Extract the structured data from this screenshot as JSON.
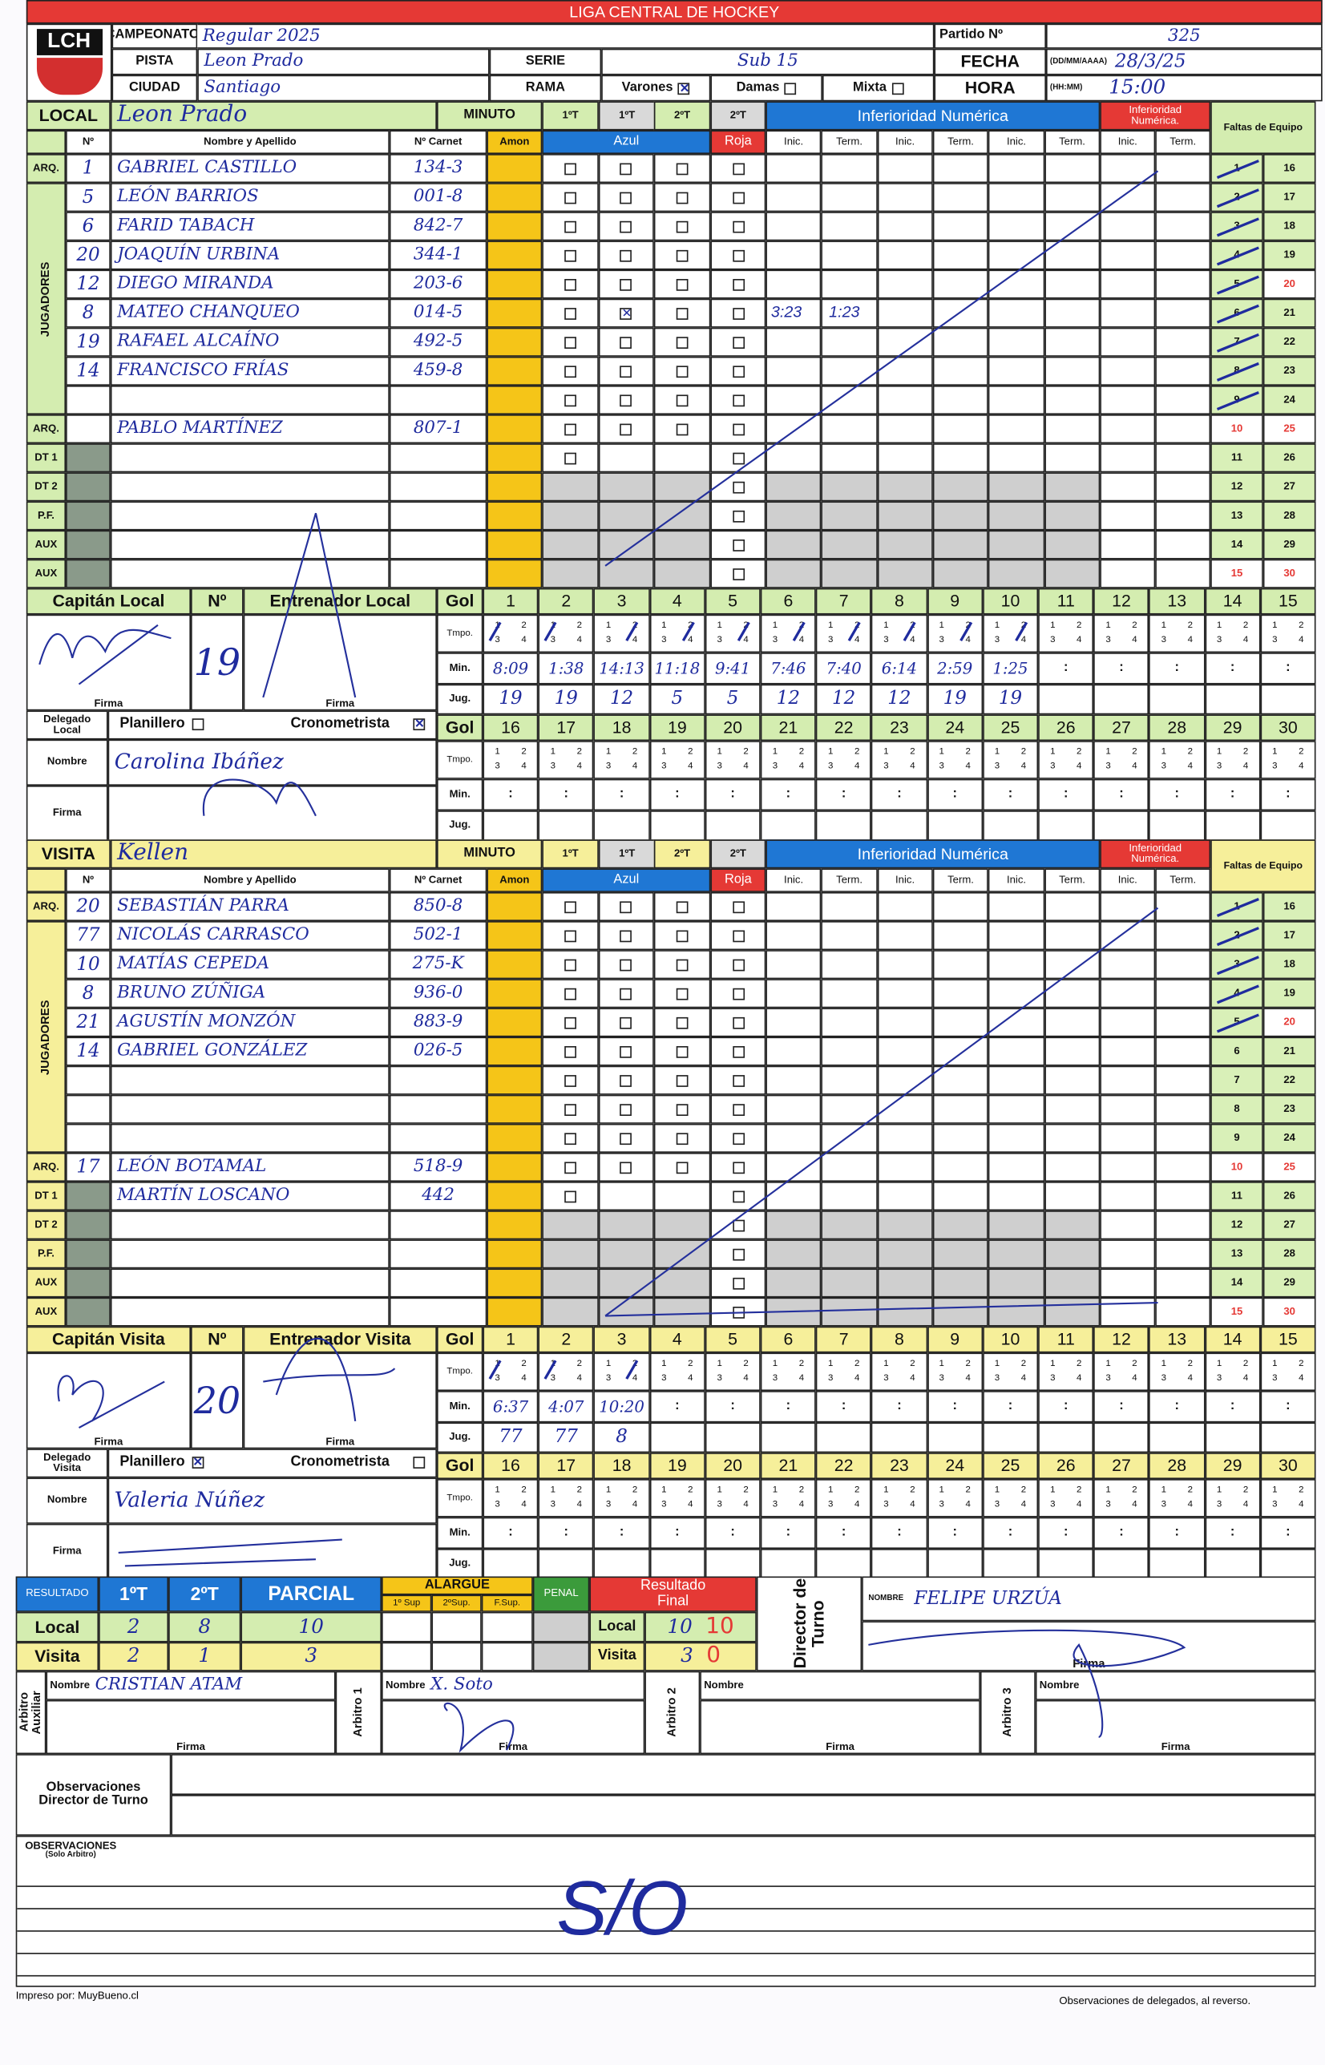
{
  "header": {
    "league_title": "LIGA CENTRAL DE HOCKEY",
    "logo_text": "LCH",
    "campeonato_label": "CAMPEONATO:",
    "campeonato": "Regular 2025",
    "partido_label": "Partido Nº",
    "partido": "325",
    "pista_label": "PISTA",
    "pista": "Leon Prado",
    "serie_label": "SERIE",
    "serie": "Sub 15",
    "fecha_label": "FECHA",
    "fecha_format": "(DD/MM/AAAA)",
    "fecha": "28/3/25",
    "ciudad_label": "CIUDAD",
    "ciudad": "Santiago",
    "rama_label": "RAMA",
    "rama_options": [
      {
        "label": "Varones",
        "checked": true
      },
      {
        "label": "Damas",
        "checked": false
      },
      {
        "label": "Mixta",
        "checked": false
      }
    ],
    "hora_label": "HORA",
    "hora_format": "(HH:MM)",
    "hora": "15:00"
  },
  "labels": {
    "minuto": "MINUTO",
    "periods": [
      "1ºT",
      "1ºT",
      "2ºT",
      "2ºT"
    ],
    "inferioridad": "Inferioridad Numérica",
    "inferioridad_red": "Inferioridad Numérica.",
    "faltas": "Faltas de Equipo",
    "num": "Nº",
    "name": "Nombre y Apellido",
    "carnet": "Nº Carnet",
    "amon": "Amon",
    "azul": "Azul",
    "roja": "Roja",
    "inic": "Inic.",
    "term": "Term.",
    "jugadores": "JUGADORES",
    "gol": "Gol",
    "tmpo": "Tmpo.",
    "min": "Min.",
    "jug": "Jug.",
    "firma": "Firma",
    "nombre": "Nombre",
    "planillero": "Planillero",
    "cronometrista": "Cronometrista",
    "time_separator": ":",
    "tmpo_periods": [
      "1",
      "2",
      "3",
      "4"
    ],
    "goal_numbers": [
      "1",
      "2",
      "3",
      "4",
      "5",
      "6",
      "7",
      "8",
      "9",
      "10",
      "11",
      "12",
      "13",
      "14",
      "15",
      "16",
      "17",
      "18",
      "19",
      "20",
      "21",
      "22",
      "23",
      "24",
      "25",
      "26",
      "27",
      "28",
      "29",
      "30"
    ],
    "faltas_numbers": [
      "1",
      "2",
      "3",
      "4",
      "5",
      "6",
      "7",
      "8",
      "9",
      "10",
      "11",
      "12",
      "13",
      "14",
      "15",
      "16",
      "17",
      "18",
      "19",
      "20",
      "21",
      "22",
      "23",
      "24",
      "25",
      "26",
      "27",
      "28",
      "29",
      "30"
    ],
    "faltas_red": [
      "10",
      "15",
      "20",
      "25",
      "30"
    ]
  },
  "local": {
    "label": "LOCAL",
    "team": "Leon Prado",
    "rows": [
      {
        "role": "ARQ.",
        "num": "1",
        "name": "GABRIEL CASTILLO",
        "carnet": "134-3"
      },
      {
        "role": "",
        "num": "5",
        "name": "LEÓN BARRIOS",
        "carnet": "001-8"
      },
      {
        "role": "",
        "num": "6",
        "name": "FARID TABACH",
        "carnet": "842-7"
      },
      {
        "role": "",
        "num": "20",
        "name": "JOAQUÍN URBINA",
        "carnet": "344-1"
      },
      {
        "role": "",
        "num": "12",
        "name": "DIEGO MIRANDA",
        "carnet": "203-6"
      },
      {
        "role": "",
        "num": "8",
        "name": "MATEO CHANQUEO",
        "carnet": "014-5"
      },
      {
        "role": "",
        "num": "19",
        "name": "RAFAEL ALCAÍNO",
        "carnet": "492-5"
      },
      {
        "role": "",
        "num": "14",
        "name": "FRANCISCO FRÍAS",
        "carnet": "459-8"
      },
      {
        "role": "",
        "num": "",
        "name": "",
        "carnet": ""
      },
      {
        "role": "ARQ.",
        "num": "",
        "name": "PABLO MARTÍNEZ",
        "carnet": "807-1"
      },
      {
        "role": "DT 1",
        "num": "",
        "name": "",
        "carnet": ""
      },
      {
        "role": "DT 2",
        "num": "",
        "name": "",
        "carnet": ""
      },
      {
        "role": "P.F.",
        "num": "",
        "name": "",
        "carnet": ""
      },
      {
        "role": "AUX",
        "num": "",
        "name": "",
        "carnet": ""
      },
      {
        "role": "AUX",
        "num": "",
        "name": "",
        "carnet": ""
      }
    ],
    "checks": [
      {
        "row": 5,
        "col": 1
      }
    ],
    "inferioridad_notes": [
      "3:23",
      "1:23"
    ],
    "faltas_marked": 9,
    "capitan_label": "Capitán Local",
    "capitan_num": "19",
    "entrenador_label": "Entrenador Local",
    "delegado_label": "Delegado Local",
    "planillero_checked": false,
    "cronometrista_checked": true,
    "delegado_nombre": "Carolina Ibáñez",
    "goals": [
      {
        "tmpo": 1,
        "min": "8:09",
        "jug": "19"
      },
      {
        "tmpo": 1,
        "min": "1:38",
        "jug": "19"
      },
      {
        "tmpo": 2,
        "min": "14:13",
        "jug": "12"
      },
      {
        "tmpo": 2,
        "min": "11:18",
        "jug": "5"
      },
      {
        "tmpo": 2,
        "min": "9:41",
        "jug": "5"
      },
      {
        "tmpo": 2,
        "min": "7:46",
        "jug": "12"
      },
      {
        "tmpo": 2,
        "min": "7:40",
        "jug": "12"
      },
      {
        "tmpo": 2,
        "min": "6:14",
        "jug": "12"
      },
      {
        "tmpo": 2,
        "min": "2:59",
        "jug": "19"
      },
      {
        "tmpo": 2,
        "min": "1:25",
        "jug": "19"
      }
    ]
  },
  "visita": {
    "label": "VISITA",
    "team": "Kellen",
    "rows": [
      {
        "role": "ARQ.",
        "num": "20",
        "name": "SEBASTIÁN PARRA",
        "carnet": "850-8"
      },
      {
        "role": "",
        "num": "77",
        "name": "NICOLÁS CARRASCO",
        "carnet": "502-1"
      },
      {
        "role": "",
        "num": "10",
        "name": "MATÍAS CEPEDA",
        "carnet": "275-K"
      },
      {
        "role": "",
        "num": "8",
        "name": "BRUNO ZÚÑIGA",
        "carnet": "936-0"
      },
      {
        "role": "",
        "num": "21",
        "name": "AGUSTÍN MONZÓN",
        "carnet": "883-9"
      },
      {
        "role": "",
        "num": "14",
        "name": "GABRIEL GONZÁLEZ",
        "carnet": "026-5"
      },
      {
        "role": "",
        "num": "",
        "name": "",
        "carnet": ""
      },
      {
        "role": "",
        "num": "",
        "name": "",
        "carnet": ""
      },
      {
        "role": "",
        "num": "",
        "name": "",
        "carnet": ""
      },
      {
        "role": "ARQ.",
        "num": "17",
        "name": "LEÓN BOTAMAL",
        "carnet": "518-9"
      },
      {
        "role": "DT 1",
        "num": "",
        "name": "MARTÍN LOSCANO",
        "carnet": "442"
      },
      {
        "role": "DT 2",
        "num": "",
        "name": "",
        "carnet": ""
      },
      {
        "role": "P.F.",
        "num": "",
        "name": "",
        "carnet": ""
      },
      {
        "role": "AUX",
        "num": "",
        "name": "",
        "carnet": ""
      },
      {
        "role": "AUX",
        "num": "",
        "name": "",
        "carnet": ""
      }
    ],
    "checks": [],
    "inferioridad_notes": [],
    "faltas_marked": 5,
    "capitan_label": "Capitán Visita",
    "capitan_num": "20",
    "entrenador_label": "Entrenador Visita",
    "delegado_label": "Delegado Visita",
    "planillero_checked": true,
    "cronometrista_checked": false,
    "delegado_nombre": "Valeria Núñez",
    "goals": [
      {
        "tmpo": 1,
        "min": "6:37",
        "jug": "77"
      },
      {
        "tmpo": 1,
        "min": "4:07",
        "jug": "77"
      },
      {
        "tmpo": 2,
        "min": "10:20",
        "jug": "8"
      }
    ]
  },
  "resultado": {
    "label": "RESULTADO",
    "t1": "1ºT",
    "t2": "2ºT",
    "parcial": "PARCIAL",
    "alargue": "ALARGUE",
    "sup": [
      "1º Sup",
      "2ºSup.",
      "F.Sup."
    ],
    "penal": "PENAL",
    "final": "Resultado Final",
    "local_label": "Local",
    "visita_label": "Visita",
    "local": {
      "t1": "2",
      "t2": "8",
      "parcial": "10",
      "final": "10",
      "correction": "10"
    },
    "visita": {
      "t1": "2",
      "t2": "1",
      "parcial": "3",
      "final": "3",
      "correction": "0"
    }
  },
  "director": {
    "label": "Director de Turno",
    "nombre_label": "NOMBRE",
    "nombre": "FELIPE URZÚA",
    "firma": "Firma"
  },
  "arbitros": [
    {
      "label": "Arbitro Auxiliar",
      "nombre": "CRISTIAN ATAM"
    },
    {
      "label": "Arbitro 1",
      "nombre": "X. Soto"
    },
    {
      "label": "Arbitro 2",
      "nombre": ""
    },
    {
      "label": "Arbitro 3",
      "nombre": ""
    }
  ],
  "observaciones": {
    "director_label": "Observaciones Director de Turno",
    "arbitro_label": "OBSERVACIONES",
    "arbitro_sub": "(Solo Arbitro)",
    "arbitro_text": "S/O"
  },
  "footer": {
    "printed_by": "Impreso por: MuyBueno.cl",
    "reverse_note": "Observaciones de delegados, al reverso."
  }
}
